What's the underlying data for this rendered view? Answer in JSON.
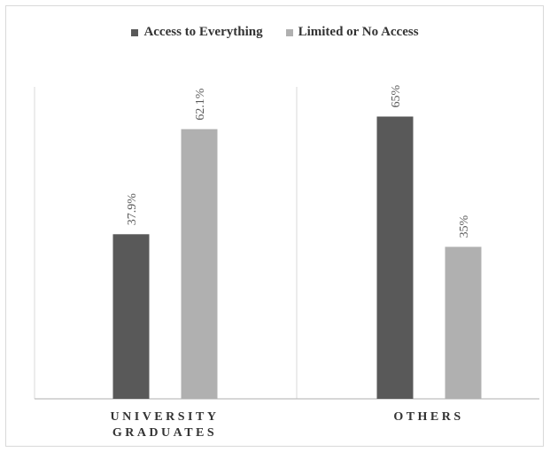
{
  "chart_data": {
    "type": "bar",
    "categories": [
      "UNIVERSITY GRADUATES",
      "OTHERS"
    ],
    "category_lines": [
      [
        "UNIVERSITY",
        "GRADUATES"
      ],
      [
        "OTHERS"
      ]
    ],
    "series": [
      {
        "name": "Access to Everything",
        "values": [
          37.9,
          65
        ],
        "labels": [
          "37.9%",
          "65%"
        ],
        "color": "#595959"
      },
      {
        "name": "Limited or No Access",
        "values": [
          62.1,
          35
        ],
        "labels": [
          "62.1%",
          "35%"
        ],
        "color": "#b0b0b0"
      }
    ],
    "ylim": [
      0,
      70
    ],
    "grid": false,
    "legend_position": "top"
  }
}
